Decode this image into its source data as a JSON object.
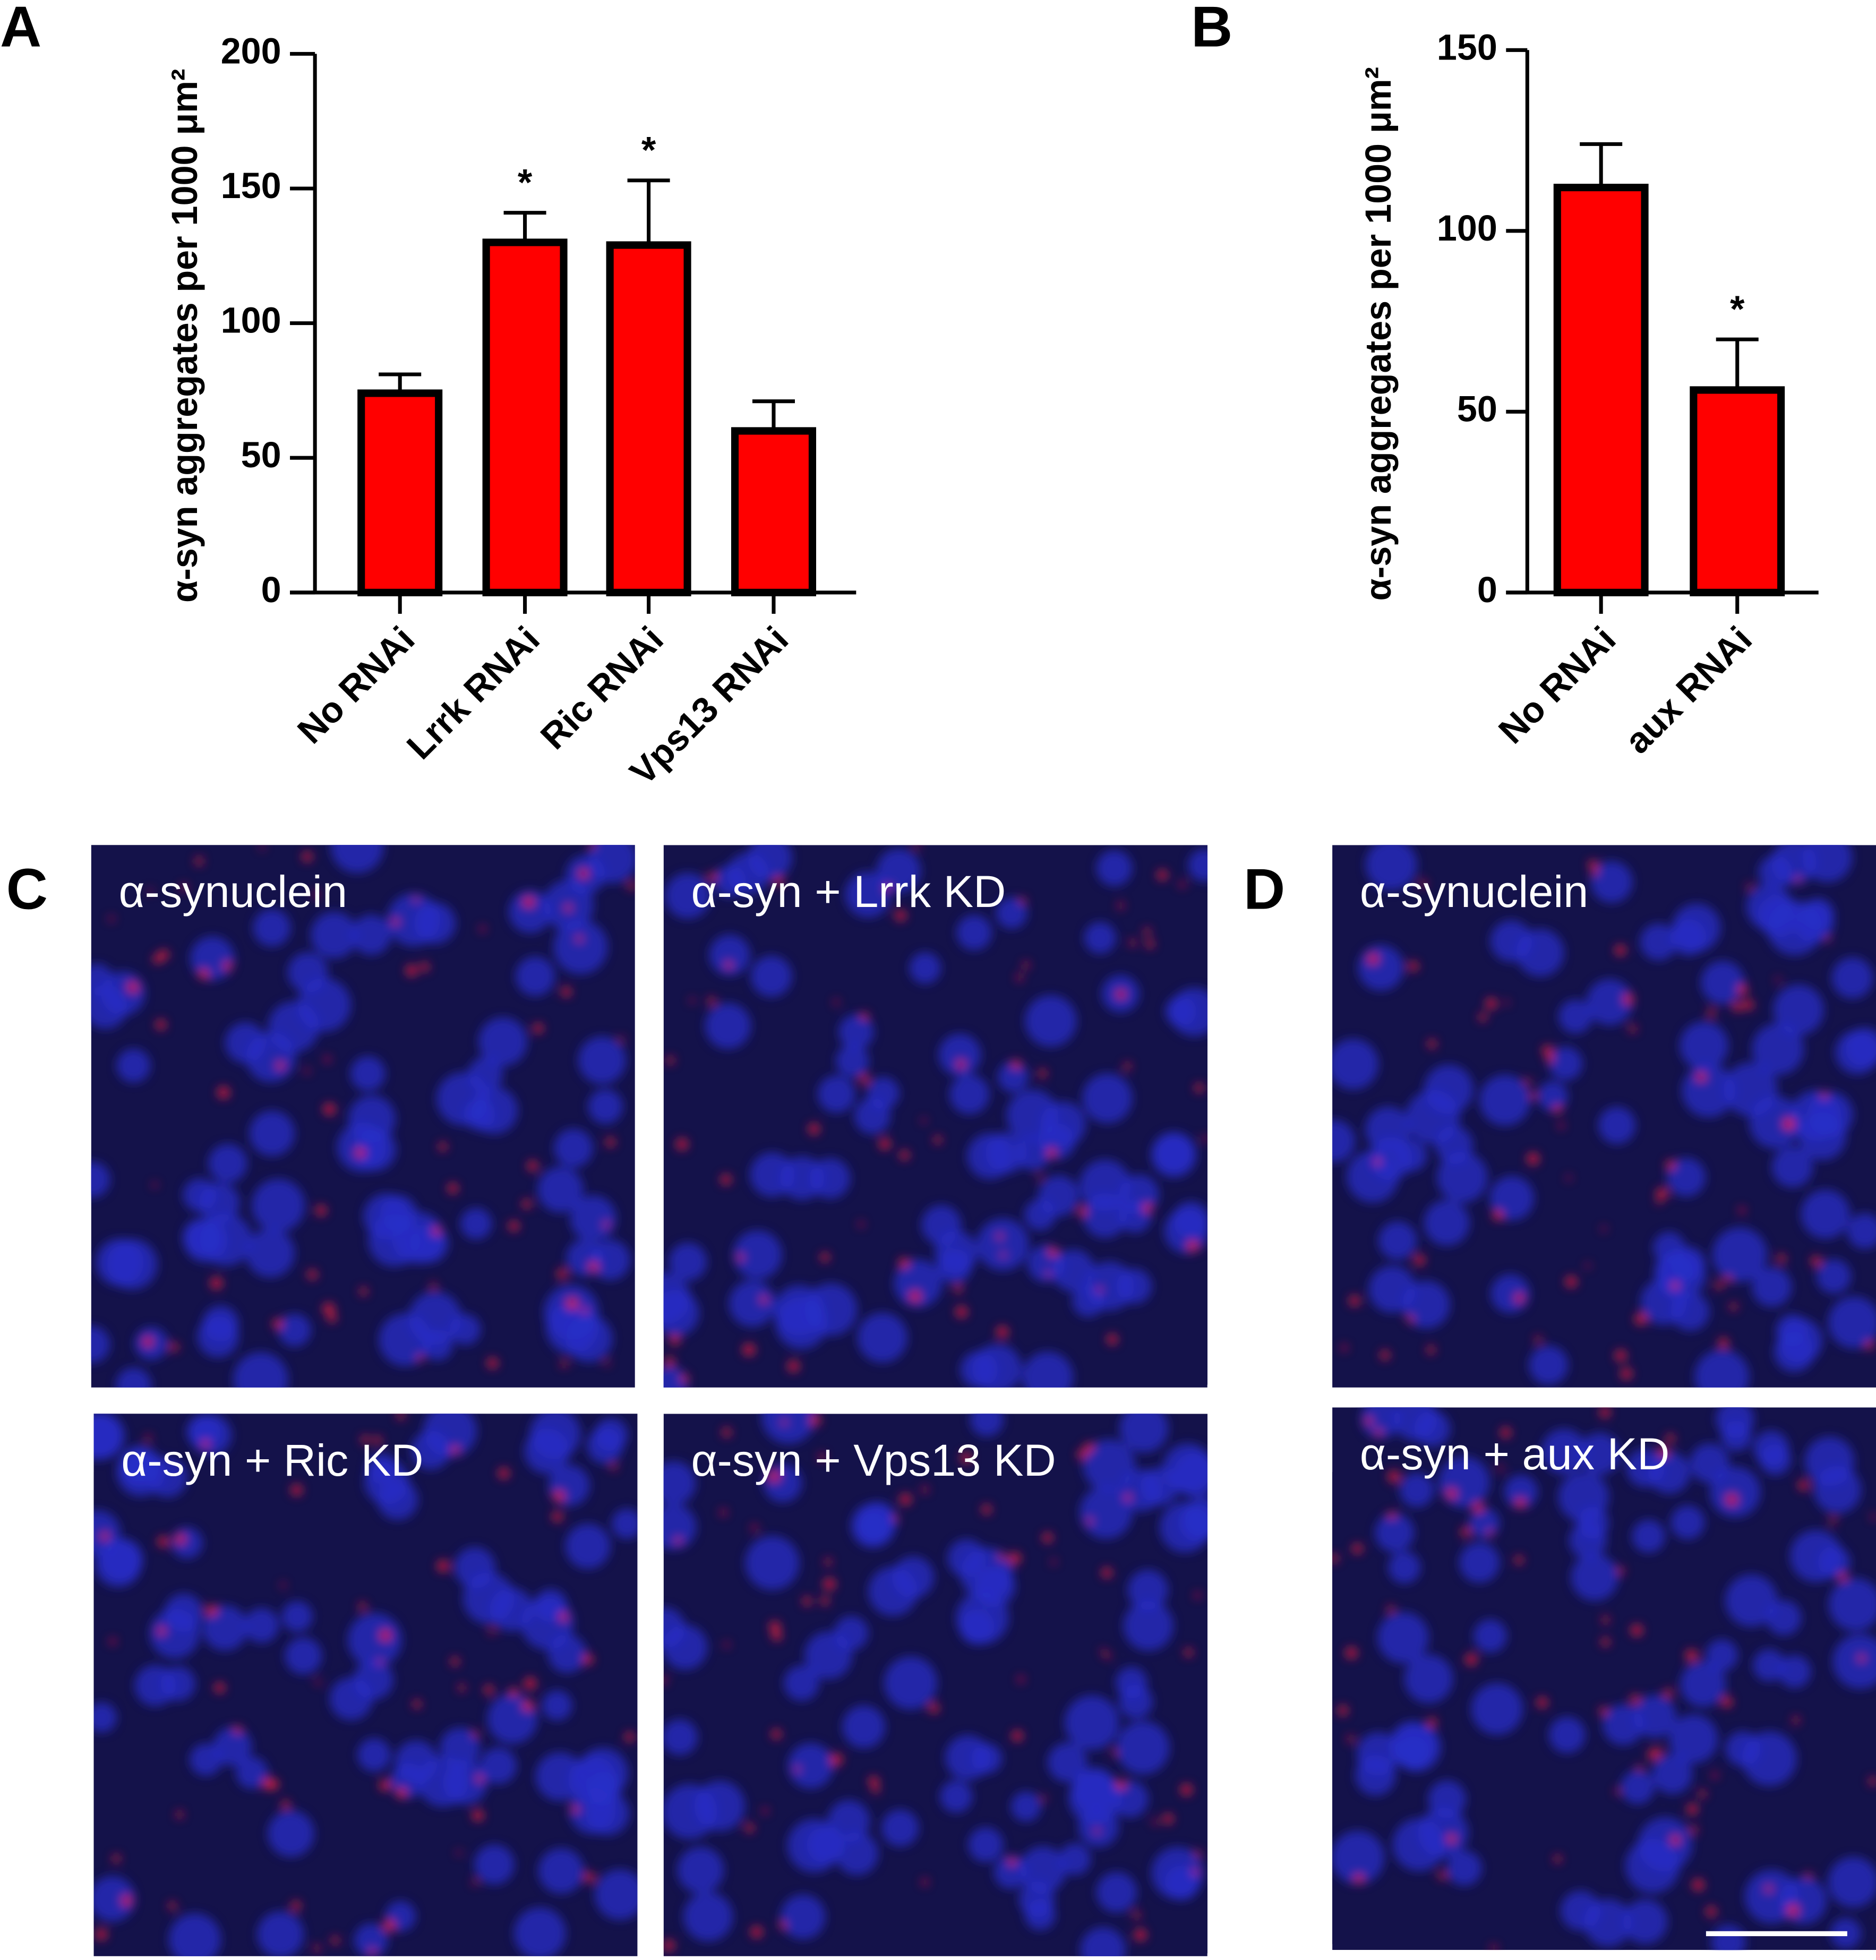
{
  "panel_letters": [
    "A",
    "B",
    "C",
    "D"
  ],
  "chart_data": [
    {
      "type": "bar",
      "y_label": "α-syn aggregates per 1000 μm²",
      "categories": [
        "No RNAi",
        "Lrrk RNAi",
        "Ric RNAi",
        "Vps13 RNAi"
      ],
      "values": [
        74,
        130,
        129,
        60
      ],
      "errors": [
        7,
        11,
        24,
        11
      ],
      "significance": [
        null,
        "*",
        "*",
        null
      ],
      "color": "#ff0000",
      "ylim": [
        0,
        200
      ],
      "yticks": [
        0,
        50,
        100,
        150,
        200
      ]
    },
    {
      "type": "bar",
      "y_label": "α-syn aggregates per 1000 μm²",
      "categories": [
        "No RNAi",
        "aux RNAi"
      ],
      "values": [
        112,
        56
      ],
      "errors": [
        12,
        14
      ],
      "significance": [
        null,
        "*"
      ],
      "color": "#ff0000",
      "ylim": [
        0,
        150
      ],
      "yticks": [
        0,
        50,
        100,
        150
      ]
    }
  ],
  "images": {
    "C": [
      "α-synuclein",
      "α-syn + Lrrk KD",
      "α-syn + Ric KD",
      "α-syn + Vps13 KD"
    ],
    "D": [
      "α-synuclein",
      "α-syn + aux KD"
    ]
  }
}
